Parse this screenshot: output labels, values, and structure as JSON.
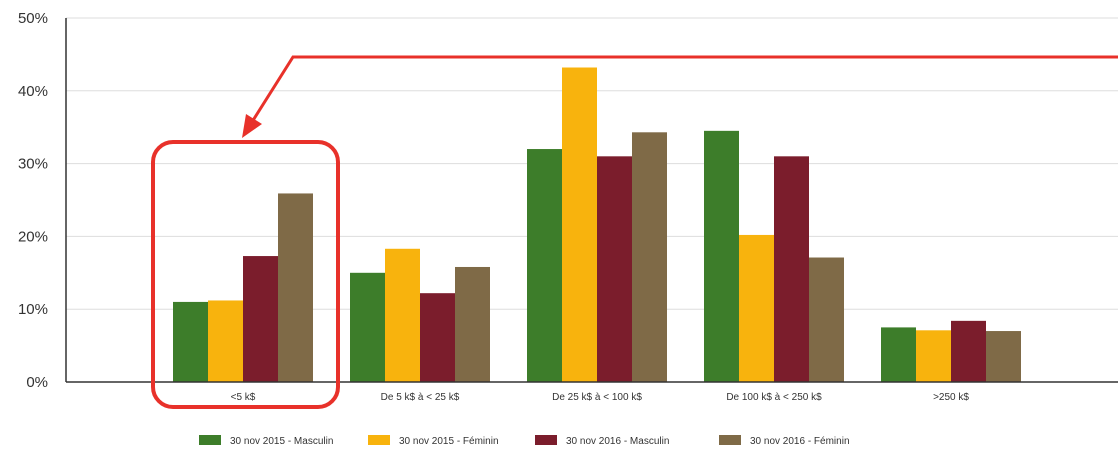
{
  "chart_data": {
    "type": "bar",
    "categories": [
      "<5 k$",
      "De 5 k$ à < 25 k$",
      "De 25 k$ à < 100 k$",
      "De 100 k$ à < 250 k$",
      ">250 k$"
    ],
    "series": [
      {
        "name": "30 nov 2015 - Masculin",
        "color": "#3d7d2a",
        "values": [
          11,
          15,
          32,
          34.5,
          7.5
        ]
      },
      {
        "name": "30 nov 2015 - Féminin",
        "color": "#f8b30d",
        "values": [
          11.2,
          18.3,
          43.2,
          20.2,
          7.1
        ]
      },
      {
        "name": "30 nov 2016 - Masculin",
        "color": "#7b1d2c",
        "values": [
          17.3,
          12.2,
          31,
          31,
          8.4
        ]
      },
      {
        "name": "30 nov 2016 - Féminin",
        "color": "#7f6a47",
        "values": [
          25.9,
          15.8,
          34.3,
          17.1,
          7
        ]
      }
    ],
    "yticks": [
      "0%",
      "10%",
      "20%",
      "30%",
      "40%",
      "50%"
    ],
    "ylim": [
      0,
      50
    ],
    "grid": true,
    "legend": "bottom",
    "annotation": {
      "type": "highlight-box-with-arrow",
      "target_category": "<5 k$",
      "color": "#e8312a"
    }
  }
}
